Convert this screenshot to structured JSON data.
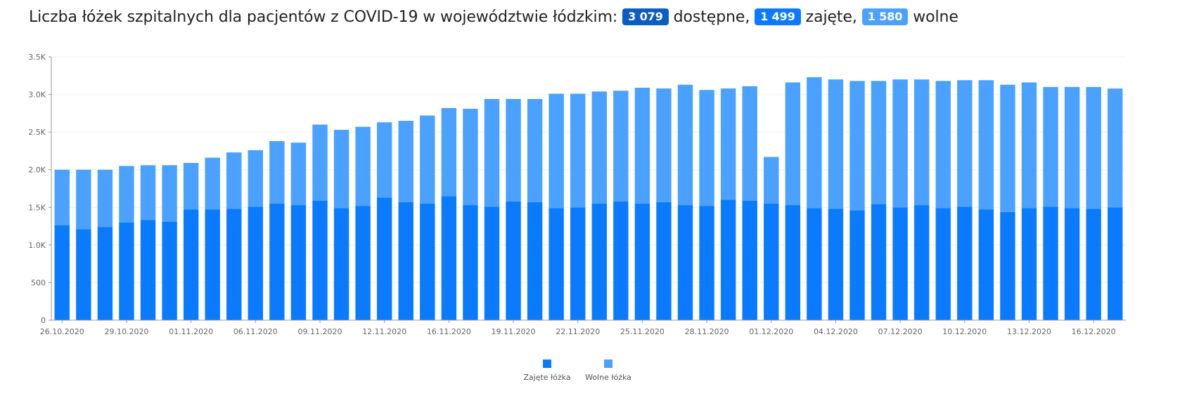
{
  "header": {
    "prefix": "Liczba łóżek szpitalnych dla pacjentów z COVID-19 w województwie łódzkim:",
    "available_value": "3 079",
    "available_label": "dostępne,",
    "occupied_value": "1 499",
    "occupied_label": "zajęte,",
    "free_value": "1 580",
    "free_label": "wolne"
  },
  "colors": {
    "occupied": "#0a7bff",
    "free": "#4aa1ff",
    "available_badge": "#0a5dc2"
  },
  "chart_data": {
    "type": "bar",
    "stacked": true,
    "title": "",
    "xlabel": "",
    "ylabel": "",
    "ylim": [
      0,
      3500
    ],
    "y_ticks": [
      "0",
      "500",
      "1.0K",
      "1.5K",
      "2.0K",
      "2.5K",
      "3.0K",
      "3.5K"
    ],
    "x_tick_labels": [
      "26.10.2020",
      "29.10.2020",
      "01.11.2020",
      "06.11.2020",
      "09.11.2020",
      "12.11.2020",
      "16.11.2020",
      "19.11.2020",
      "22.11.2020",
      "25.11.2020",
      "28.11.2020",
      "01.12.2020",
      "04.12.2020",
      "07.12.2020",
      "10.12.2020",
      "13.12.2020",
      "16.12.2020"
    ],
    "x_tick_positions": [
      0,
      3,
      6,
      9,
      12,
      15,
      18,
      21,
      24,
      27,
      30,
      33,
      36,
      39,
      42,
      45,
      48
    ],
    "legend": "bottom-center",
    "grid": true,
    "series": [
      {
        "name": "Zajęte łóżka",
        "color": "#0a7bff",
        "values": [
          1260,
          1210,
          1240,
          1300,
          1330,
          1310,
          1470,
          1470,
          1480,
          1510,
          1550,
          1530,
          1590,
          1490,
          1520,
          1630,
          1570,
          1550,
          1650,
          1530,
          1510,
          1580,
          1570,
          1490,
          1500,
          1550,
          1580,
          1550,
          1570,
          1530,
          1520,
          1600,
          1590,
          1550,
          1530,
          1490,
          1480,
          1460,
          1540,
          1500,
          1530,
          1490,
          1510,
          1470,
          1440,
          1490,
          1510,
          1490,
          1480,
          1499
        ]
      },
      {
        "name": "Wolne łóżka",
        "color": "#4aa1ff",
        "values": [
          740,
          790,
          760,
          750,
          730,
          750,
          620,
          690,
          750,
          750,
          830,
          830,
          1010,
          1040,
          1050,
          1000,
          1080,
          1170,
          1170,
          1280,
          1430,
          1360,
          1370,
          1520,
          1510,
          1490,
          1470,
          1540,
          1510,
          1600,
          1540,
          1480,
          1520,
          620,
          1630,
          1740,
          1720,
          1720,
          1640,
          1700,
          1670,
          1690,
          1680,
          1720,
          1690,
          1670,
          1590,
          1610,
          1620,
          1580
        ]
      }
    ]
  }
}
